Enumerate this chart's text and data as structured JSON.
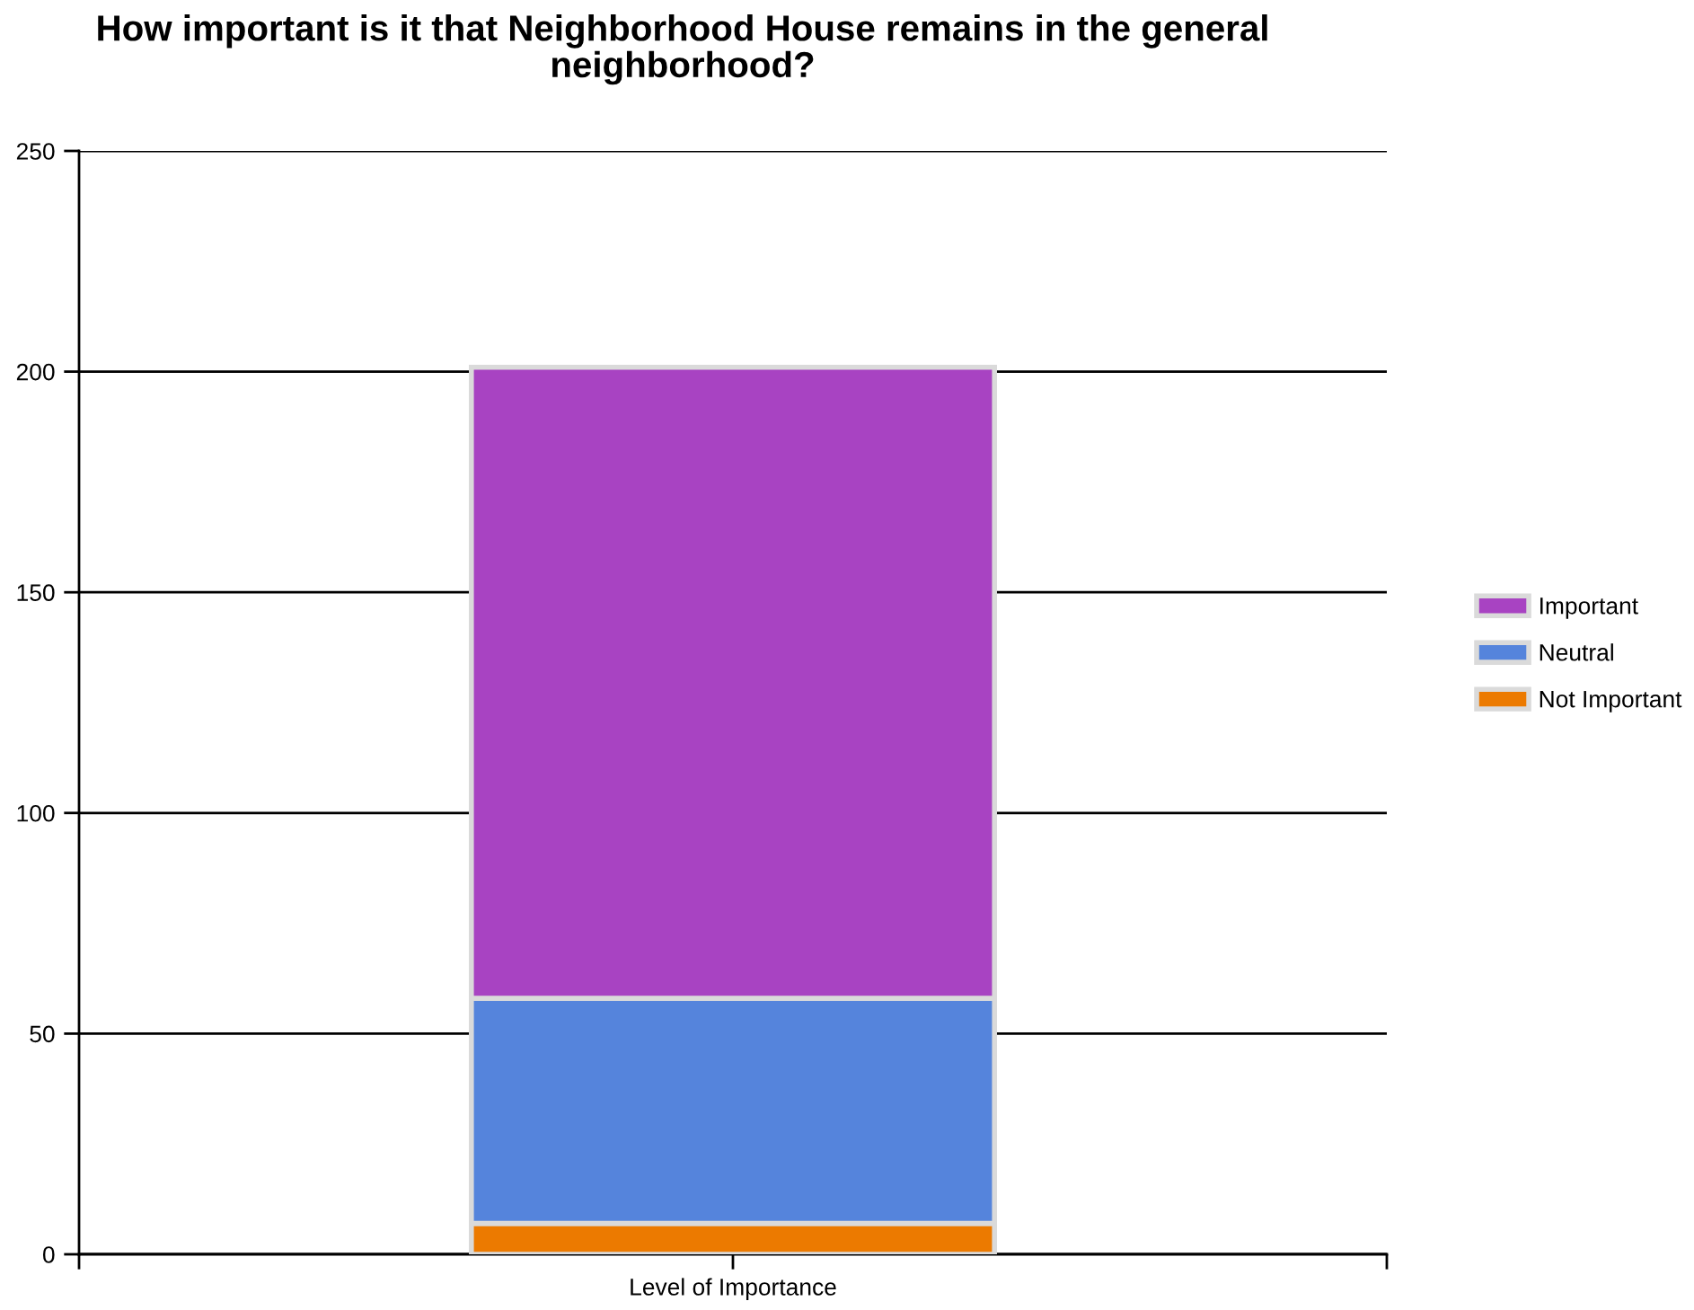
{
  "chart_data": {
    "type": "bar",
    "title": "How important is it that Neighborhood House remains in the general neighborhood?",
    "categories": [
      "Level of Importance"
    ],
    "series": [
      {
        "name": "Not Important",
        "color": "#ec7a00",
        "values": [
          7
        ]
      },
      {
        "name": "Neutral",
        "color": "#5584dc",
        "values": [
          51
        ]
      },
      {
        "name": "Important",
        "color": "#a843c2",
        "values": [
          143
        ]
      }
    ],
    "stacked": true,
    "ylim": [
      0,
      250
    ],
    "yticks": [
      0,
      50,
      100,
      150,
      200,
      250
    ],
    "grid": "y",
    "legend": "right"
  }
}
